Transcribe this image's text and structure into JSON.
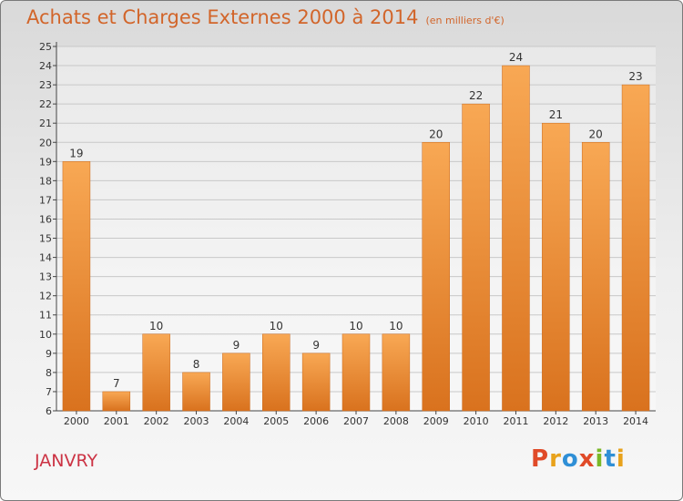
{
  "chart_data": {
    "type": "bar",
    "title": "Achats et Charges Externes 2000 à 2014",
    "unit": "(en milliers d'€)",
    "categories": [
      "2000",
      "2001",
      "2002",
      "2003",
      "2004",
      "2005",
      "2006",
      "2007",
      "2008",
      "2009",
      "2010",
      "2011",
      "2012",
      "2013",
      "2014"
    ],
    "values": [
      19,
      7,
      10,
      8,
      9,
      10,
      9,
      10,
      10,
      20,
      22,
      24,
      21,
      20,
      23
    ],
    "ylim": [
      6,
      25
    ],
    "yticks": [
      6,
      7,
      8,
      9,
      10,
      11,
      12,
      13,
      14,
      15,
      16,
      17,
      18,
      19,
      20,
      21,
      22,
      23,
      24,
      25
    ],
    "grid": true,
    "colors": {
      "bar_light": "#f8a854",
      "bar_dark": "#d9721e",
      "grid": "#c8c8c8",
      "axis": "#444444",
      "text": "#333333"
    }
  },
  "footer": {
    "commune": "JANVRY",
    "logo": "Proxiti",
    "logo_colors": [
      "#e04a28",
      "#e8a21b",
      "#2f8fd6",
      "#e04a28",
      "#7ab828",
      "#2f8fd6",
      "#e8a21b"
    ]
  }
}
